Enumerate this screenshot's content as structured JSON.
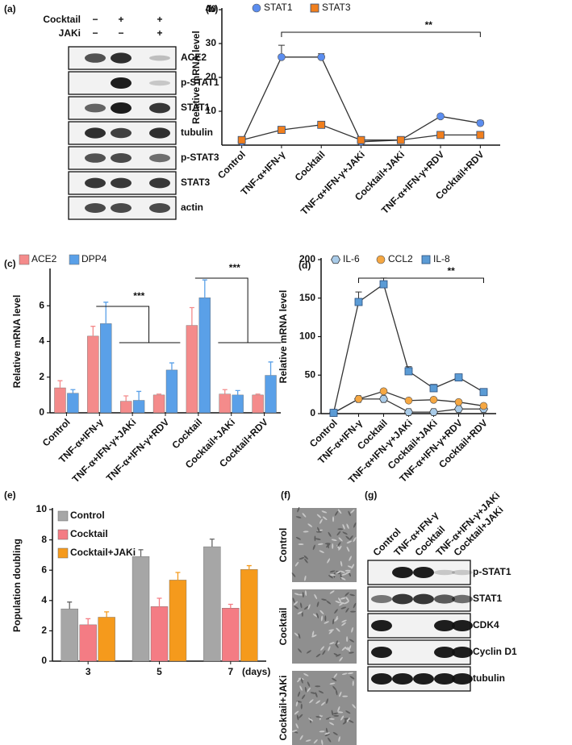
{
  "chart_data": [
    {
      "type": "line",
      "panel": "(b)",
      "ylabel": "Relative mRNA level",
      "categories": [
        "Control",
        "TNF-α+IFN-γ",
        "Cocktail",
        "TNF-α+IFN-γ+JAKi",
        "Cocktail+JAKi",
        "TNF-α+IFN-γ+RDV",
        "Cocktail+RDV"
      ],
      "series": [
        {
          "name": "STAT1",
          "color": "#5b8def",
          "marker": "circle",
          "values": [
            1,
            26,
            26,
            1,
            1.5,
            8.5,
            6.5
          ],
          "errors": [
            0.2,
            3.5,
            1,
            0.2,
            0.2,
            0.5,
            0.8
          ]
        },
        {
          "name": "STAT3",
          "color": "#f07f1e",
          "marker": "square",
          "values": [
            1.5,
            4.5,
            6,
            1.5,
            1.5,
            3,
            3
          ],
          "errors": [
            0.2,
            0.6,
            0.8,
            0.2,
            0.2,
            0.3,
            0.3
          ]
        }
      ],
      "ylim": [
        0,
        40
      ],
      "yticks": [
        10,
        20,
        30,
        40
      ],
      "annotations": [
        "**"
      ]
    },
    {
      "type": "bar",
      "panel": "(c)",
      "ylabel": "Relative mRNA level",
      "categories": [
        "Control",
        "TNF-α+IFN-γ",
        "TNF-α+IFN-γ+JAKi",
        "TNF-α+IFN-γ+RDV",
        "Cocktail",
        "Cocktail+JAKi",
        "Cocktail+RDV"
      ],
      "series": [
        {
          "name": "ACE2",
          "color": "#f48b8b",
          "values": [
            1.4,
            4.3,
            0.65,
            1.0,
            4.9,
            1.05,
            1.0
          ],
          "errors": [
            0.4,
            0.55,
            0.3,
            0.05,
            1.0,
            0.25,
            0.05
          ]
        },
        {
          "name": "DPP4",
          "color": "#5aa0e8",
          "values": [
            1.1,
            5.0,
            0.7,
            2.4,
            6.45,
            1.0,
            2.1
          ],
          "errors": [
            0.2,
            1.2,
            0.5,
            0.4,
            1.0,
            0.25,
            0.75
          ]
        }
      ],
      "ylim": [
        0,
        8
      ],
      "yticks": [
        0,
        2,
        4,
        6
      ],
      "annotations": [
        "***",
        "***"
      ]
    },
    {
      "type": "line",
      "panel": "(d)",
      "ylabel": "Relative mRNA level",
      "categories": [
        "Control",
        "TNF-α+IFN-γ",
        "Cocktail",
        "TNF-α+IFN-γ+JAKi",
        "Cocktail+JAKi",
        "TNF-α+IFN-γ+RDV",
        "Cocktail+RDV"
      ],
      "series": [
        {
          "name": "IL-6",
          "color": "#a9cbe8",
          "marker": "hexagon",
          "values": [
            1,
            19,
            19,
            2,
            2,
            6,
            6
          ],
          "errors": [
            0.5,
            2,
            3,
            0.5,
            0.5,
            0.5,
            0.5
          ]
        },
        {
          "name": "CCL2",
          "color": "#f5a742",
          "marker": "circle",
          "values": [
            1,
            19,
            29,
            17,
            18,
            15,
            10
          ],
          "errors": [
            0.5,
            2,
            2,
            1,
            1,
            1,
            1
          ]
        },
        {
          "name": "IL-8",
          "color": "#5b9bd5",
          "marker": "square",
          "values": [
            1,
            145,
            168,
            55,
            33,
            47,
            28
          ],
          "errors": [
            1,
            13,
            8,
            6,
            5,
            4,
            2
          ]
        }
      ],
      "ylim": [
        0,
        200
      ],
      "yticks": [
        0,
        50,
        100,
        150,
        200
      ],
      "annotations": [
        "**"
      ]
    },
    {
      "type": "bar",
      "panel": "(e)",
      "ylabel": "Population doubling",
      "x_unit": "(days)",
      "categories": [
        "3",
        "5",
        "7"
      ],
      "series": [
        {
          "name": "Control",
          "color": "#a6a6a6",
          "values": [
            3.45,
            6.9,
            7.55
          ],
          "errors": [
            0.45,
            0.45,
            0.5
          ]
        },
        {
          "name": "Cocktail",
          "color": "#f47c84",
          "values": [
            2.4,
            3.6,
            3.5
          ],
          "errors": [
            0.4,
            0.55,
            0.25
          ]
        },
        {
          "name": "Cocktail+JAKi",
          "color": "#f59a1c",
          "values": [
            2.9,
            5.35,
            6.05
          ],
          "errors": [
            0.35,
            0.5,
            0.25
          ]
        }
      ],
      "ylim": [
        0,
        10
      ],
      "yticks": [
        0,
        2,
        4,
        6,
        8,
        10
      ]
    }
  ],
  "panels": {
    "a": {
      "label": "(a)",
      "header": [
        {
          "name": "Cocktail",
          "signs": [
            "−",
            "+",
            "+"
          ]
        },
        {
          "name": "JAKi",
          "signs": [
            "−",
            "−",
            "+"
          ]
        }
      ],
      "rows": [
        "ACE2",
        "p-STAT1",
        "STAT1",
        "tubulin",
        "p-STAT3",
        "STAT3",
        "actin"
      ]
    },
    "f": {
      "label": "(f)",
      "images": [
        "Control",
        "Cocktail",
        "Cocktail+JAKi"
      ]
    },
    "g": {
      "label": "(g)",
      "lanes": [
        "Control",
        "TNF-α+IFN-γ",
        "Cocktail",
        "TNF-α+IFN-γ+JAKi",
        "Cocktail+JAKi"
      ],
      "rows": [
        "p-STAT1",
        "STAT1",
        "CDK4",
        "Cyclin D1",
        "tubulin"
      ]
    }
  }
}
